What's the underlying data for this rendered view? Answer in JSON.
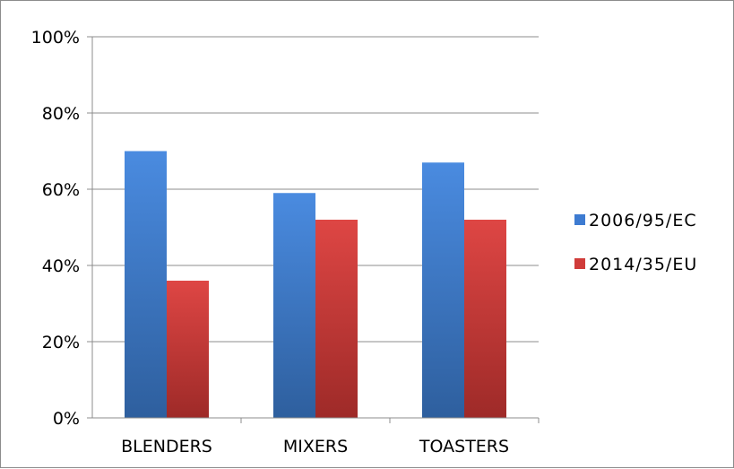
{
  "chart_data": {
    "type": "bar",
    "categories": [
      "BLENDERS",
      "MIXERS",
      "TOASTERS"
    ],
    "series": [
      {
        "name": "2006/95/EC",
        "values": [
          70,
          59,
          67
        ],
        "color": "#3d7bd1"
      },
      {
        "name": "2014/35/EU",
        "values": [
          36,
          52,
          52
        ],
        "color": "#d03c3a"
      }
    ],
    "ylim": [
      0,
      100
    ],
    "yticks": [
      "0%",
      "20%",
      "40%",
      "60%",
      "80%",
      "100%"
    ],
    "grid": true,
    "legend": "right",
    "title": "",
    "xlabel": "",
    "ylabel": ""
  }
}
